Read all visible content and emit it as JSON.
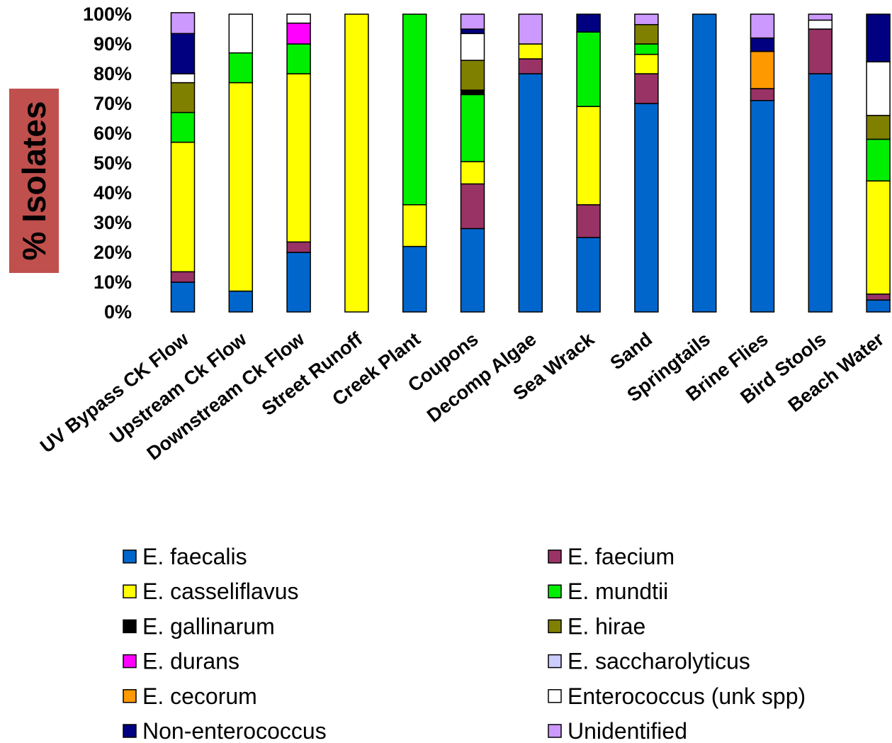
{
  "chart_data": {
    "type": "bar",
    "stacked": true,
    "percent": true,
    "ylabel": "% Isolates",
    "ylabel_background": "#c0504d",
    "ylim": [
      0,
      100
    ],
    "y_ticks": [
      "0%",
      "10%",
      "20%",
      "30%",
      "40%",
      "50%",
      "60%",
      "70%",
      "80%",
      "90%",
      "100%"
    ],
    "categories": [
      "UV Bypass CK Flow",
      "Upstream Ck Flow",
      "Downstream Ck Flow",
      "Street Runoff",
      "Creek Plant",
      "Coupons",
      "Decomp Algae",
      "Sea Wrack",
      "Sand",
      "Springtails",
      "Brine Flies",
      "Bird Stools",
      "Beach Water"
    ],
    "series": [
      {
        "name": "E. faecalis",
        "color": "#0066cc",
        "values": [
          10,
          7,
          20,
          0,
          22,
          28,
          80,
          25,
          70,
          100,
          71,
          80,
          4
        ]
      },
      {
        "name": "E. faecium",
        "color": "#993366",
        "values": [
          3.5,
          0,
          3.5,
          0,
          0,
          15,
          5,
          11,
          10,
          0,
          4,
          15,
          2
        ]
      },
      {
        "name": "E. casseliflavus",
        "color": "#ffff00",
        "values": [
          43.5,
          70,
          56.5,
          100,
          14,
          7.5,
          5,
          33,
          6.5,
          0,
          0,
          0,
          38
        ]
      },
      {
        "name": "E. mundtii",
        "color": "#00ee00",
        "values": [
          10,
          10,
          10,
          0,
          64,
          22.5,
          0,
          25,
          3.5,
          0,
          0,
          0,
          14
        ]
      },
      {
        "name": "E. gallinarum",
        "color": "#000000",
        "values": [
          0,
          0,
          0,
          0,
          0,
          1.5,
          0,
          0,
          0,
          0,
          0,
          0,
          0
        ]
      },
      {
        "name": "E. hirae",
        "color": "#808000",
        "values": [
          10,
          0,
          0,
          0,
          0,
          10,
          0,
          0,
          6.5,
          0,
          0,
          0,
          8
        ]
      },
      {
        "name": "E. durans",
        "color": "#ff00ff",
        "values": [
          0,
          0,
          7,
          0,
          0,
          0,
          0,
          0,
          0,
          0,
          0,
          0,
          0
        ]
      },
      {
        "name": "E. saccharolyticus",
        "color": "#ccccff",
        "values": [
          0,
          0,
          0,
          0,
          0,
          0,
          0,
          0,
          0,
          0,
          0,
          0,
          0
        ]
      },
      {
        "name": "E. cecorum",
        "color": "#ff9900",
        "values": [
          0,
          0,
          0,
          0,
          0,
          0,
          0,
          0,
          0,
          0,
          12.5,
          0,
          0
        ]
      },
      {
        "name": "Enterococcus (unk spp)",
        "color": "#ffffff",
        "values": [
          3,
          13,
          3,
          0,
          0,
          9,
          0,
          0,
          0,
          0,
          0,
          3,
          18
        ]
      },
      {
        "name": "Non-enterococcus",
        "color": "#000080",
        "values": [
          13.5,
          0,
          0,
          0,
          0,
          1.5,
          0,
          6,
          0,
          0,
          4.5,
          0,
          16
        ]
      },
      {
        "name": "Unidentified",
        "color": "#cc99ff",
        "values": [
          7,
          0,
          0,
          0,
          0,
          5,
          10,
          0,
          3.5,
          0,
          8,
          2,
          0
        ]
      }
    ]
  }
}
